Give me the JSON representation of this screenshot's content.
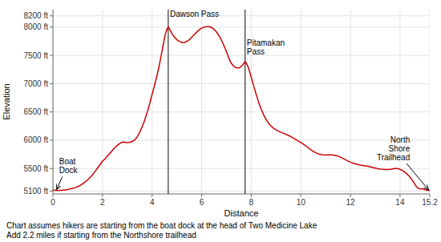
{
  "chart_data": {
    "type": "line",
    "xlabel": "Distance",
    "ylabel": "Elevation",
    "color": "#cc0000",
    "grid": true,
    "xlim": [
      0,
      15.2
    ],
    "ylim": [
      5050,
      8310
    ],
    "xticks": [
      0,
      2,
      4,
      6,
      8,
      10,
      12,
      14,
      15.2
    ],
    "yticks": [
      {
        "value": 5100,
        "label": "5100 ft"
      },
      {
        "value": 5500,
        "label": "5500 ft"
      },
      {
        "value": 6000,
        "label": "6000 ft"
      },
      {
        "value": 6500,
        "label": "6500 ft"
      },
      {
        "value": 7000,
        "label": "7000 ft"
      },
      {
        "value": 7500,
        "label": "7500 ft"
      },
      {
        "value": 8000,
        "label": "8000 ft"
      },
      {
        "value": 8200,
        "label": "8200 ft"
      }
    ],
    "vlines": {
      "x": [
        4.65,
        7.75
      ],
      "color": "#333333"
    },
    "annotations": [
      {
        "text": "Boat\nDock",
        "x": 0.15,
        "y": 5130,
        "text_x": 0.25,
        "text_y": 5370
      },
      {
        "text": "Dawson Pass",
        "text_x": 4.72,
        "text_y": 8145
      },
      {
        "text": "Pitamakan\nPass",
        "text_x": 7.82,
        "text_y": 7800
      },
      {
        "text": "North\nShore\nTrailhead",
        "x": 15.15,
        "y": 5120,
        "text_x": 14.4,
        "text_y": 5600
      }
    ],
    "notes": [
      "Chart assumes hikers are starting from the boat dock at the head of Two Medicine Lake",
      "Add 2.2 miles if starting from the Northshore trailhead"
    ],
    "x": [
      0.0,
      0.05,
      0.1,
      0.15,
      0.2,
      0.3,
      0.4,
      0.5,
      0.6,
      0.7,
      0.8,
      0.9,
      1.0,
      1.1,
      1.2,
      1.3,
      1.4,
      1.5,
      1.6,
      1.7,
      1.8,
      1.9,
      2.0,
      2.05,
      2.1,
      2.2,
      2.25,
      2.3,
      2.4,
      2.5,
      2.6,
      2.65,
      2.7,
      2.75,
      2.8,
      2.85,
      2.9,
      2.95,
      3.0,
      3.05,
      3.1,
      3.2,
      3.3,
      3.4,
      3.5,
      3.6,
      3.7,
      3.8,
      3.9,
      4.0,
      4.1,
      4.2,
      4.3,
      4.4,
      4.45,
      4.5,
      4.55,
      4.6,
      4.65,
      4.7,
      4.75,
      4.8,
      4.85,
      4.9,
      4.95,
      5.0,
      5.05,
      5.1,
      5.15,
      5.2,
      5.25,
      5.3,
      5.35,
      5.4,
      5.45,
      5.5,
      5.55,
      5.6,
      5.65,
      5.7,
      5.75,
      5.8,
      5.85,
      5.9,
      5.95,
      6.0,
      6.05,
      6.1,
      6.15,
      6.2,
      6.25,
      6.3,
      6.35,
      6.4,
      6.45,
      6.5,
      6.55,
      6.6,
      6.65,
      6.7,
      6.75,
      6.8,
      6.85,
      6.9,
      6.95,
      7.0,
      7.05,
      7.1,
      7.15,
      7.2,
      7.25,
      7.3,
      7.35,
      7.4,
      7.45,
      7.5,
      7.55,
      7.6,
      7.65,
      7.7,
      7.75,
      7.8,
      7.85,
      7.9,
      7.95,
      8.0,
      8.1,
      8.2,
      8.3,
      8.4,
      8.5,
      8.6,
      8.7,
      8.8,
      8.9,
      9.0,
      9.1,
      9.2,
      9.3,
      9.4,
      9.5,
      9.6,
      9.7,
      9.8,
      9.9,
      10.0,
      10.1,
      10.2,
      10.3,
      10.4,
      10.5,
      10.6,
      10.7,
      10.8,
      10.9,
      11.0,
      11.05,
      11.1,
      11.2,
      11.3,
      11.4,
      11.5,
      11.6,
      11.7,
      11.8,
      11.9,
      12.0,
      12.1,
      12.2,
      12.3,
      12.4,
      12.5,
      12.6,
      12.7,
      12.8,
      12.9,
      13.0,
      13.1,
      13.2,
      13.3,
      13.4,
      13.5,
      13.6,
      13.65,
      13.7,
      13.75,
      13.8,
      13.85,
      13.9,
      13.95,
      14.0,
      14.05,
      14.1,
      14.15,
      14.2,
      14.25,
      14.3,
      14.35,
      14.4,
      14.45,
      14.5,
      14.55,
      14.6,
      14.65,
      14.7,
      14.75,
      14.8,
      14.85,
      14.9,
      14.95,
      15.0,
      15.05,
      15.1,
      15.15,
      15.2
    ],
    "values": [
      5120,
      5118,
      5115,
      5113,
      5112,
      5113,
      5116,
      5122,
      5128,
      5138,
      5150,
      5162,
      5178,
      5200,
      5228,
      5262,
      5298,
      5340,
      5390,
      5448,
      5508,
      5568,
      5628,
      5648,
      5668,
      5720,
      5745,
      5768,
      5820,
      5872,
      5910,
      5928,
      5942,
      5955,
      5965,
      5968,
      5965,
      5960,
      5958,
      5960,
      5965,
      5978,
      6005,
      6060,
      6140,
      6238,
      6355,
      6490,
      6642,
      6812,
      6975,
      7148,
      7348,
      7572,
      7690,
      7808,
      7900,
      7962,
      8005,
      7970,
      7930,
      7888,
      7855,
      7825,
      7800,
      7778,
      7762,
      7748,
      7738,
      7730,
      7728,
      7730,
      7738,
      7750,
      7762,
      7778,
      7798,
      7820,
      7845,
      7868,
      7890,
      7912,
      7932,
      7952,
      7968,
      7982,
      7992,
      8000,
      8005,
      8008,
      8010,
      8008,
      8002,
      7992,
      7978,
      7960,
      7938,
      7912,
      7882,
      7848,
      7810,
      7768,
      7722,
      7672,
      7620,
      7565,
      7508,
      7450,
      7400,
      7360,
      7330,
      7308,
      7292,
      7282,
      7278,
      7280,
      7290,
      7308,
      7332,
      7360,
      7392,
      7365,
      7320,
      7260,
      7188,
      7108,
      6958,
      6808,
      6668,
      6548,
      6448,
      6365,
      6298,
      6248,
      6210,
      6182,
      6160,
      6140,
      6122,
      6105,
      6085,
      6062,
      6038,
      6012,
      5985,
      5958,
      5930,
      5900,
      5865,
      5832,
      5802,
      5778,
      5760,
      5748,
      5742,
      5738,
      5738,
      5740,
      5742,
      5738,
      5730,
      5718,
      5700,
      5678,
      5655,
      5632,
      5612,
      5595,
      5582,
      5570,
      5560,
      5552,
      5545,
      5538,
      5528,
      5518,
      5508,
      5498,
      5490,
      5485,
      5482,
      5482,
      5485,
      5488,
      5492,
      5496,
      5500,
      5500,
      5498,
      5492,
      5485,
      5475,
      5462,
      5448,
      5432,
      5415,
      5395,
      5372,
      5348,
      5320,
      5290,
      5258,
      5222,
      5188,
      5162,
      5148,
      5140,
      5138,
      5138,
      5135,
      5128,
      5120,
      5115,
      5112,
      5110
    ]
  }
}
